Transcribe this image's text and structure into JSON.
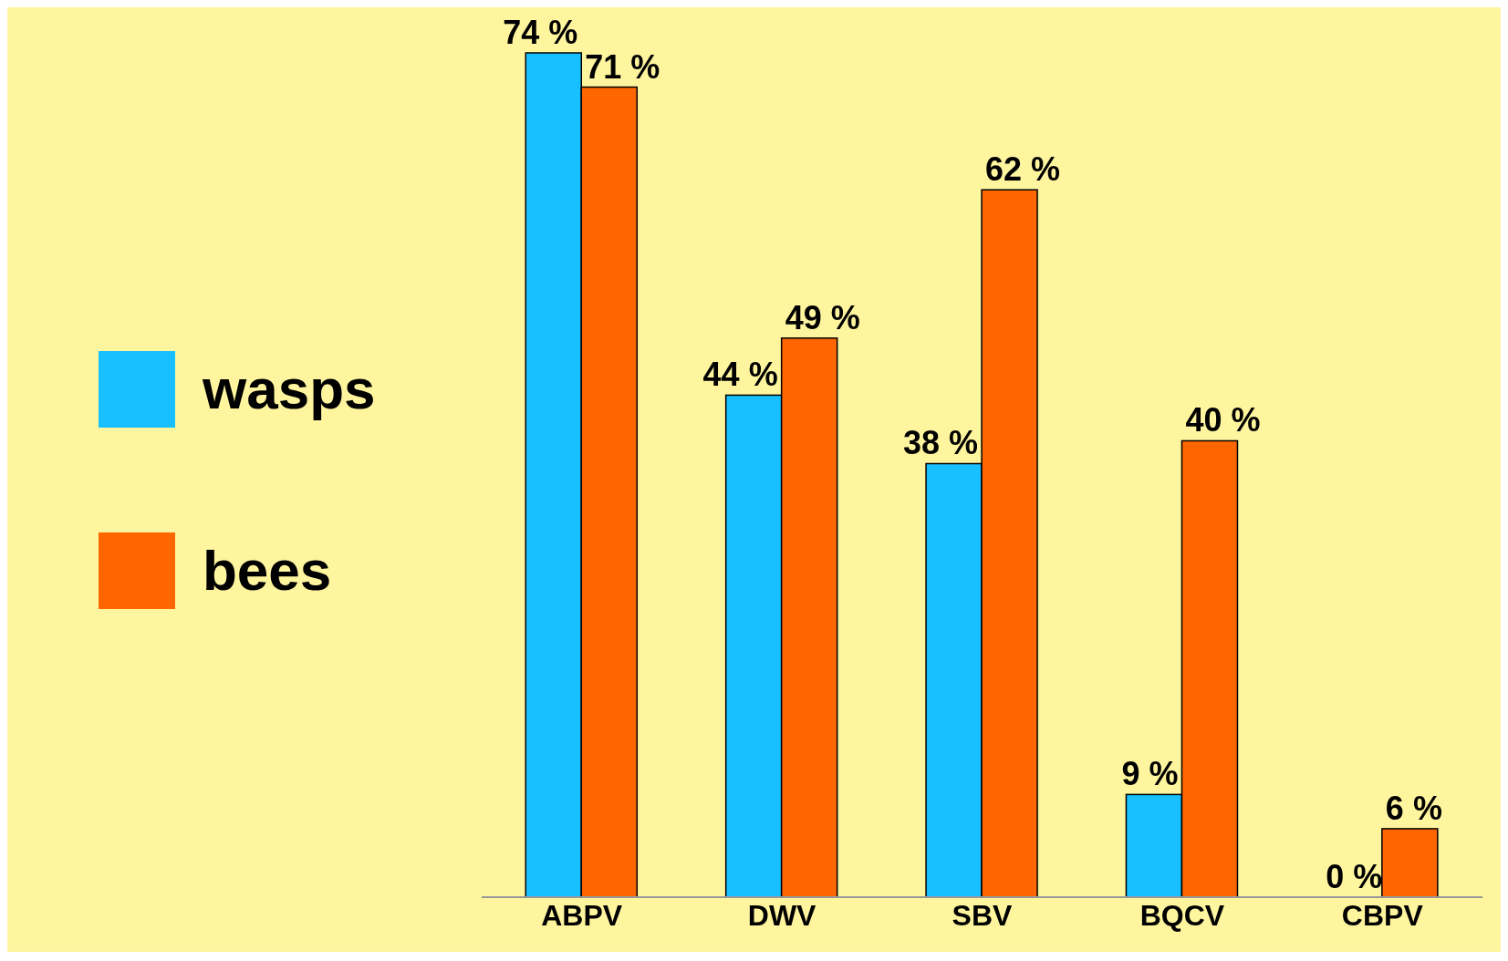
{
  "chart_data": {
    "type": "bar",
    "categories": [
      "ABPV",
      "DWV",
      "SBV",
      "BQCV",
      "CBPV"
    ],
    "series": [
      {
        "name": "wasps",
        "color": "#19c0ff",
        "values": [
          74,
          44,
          38,
          9,
          0
        ],
        "value_labels": [
          "74 %",
          "44 %",
          "38 %",
          "9 %",
          "0 %"
        ]
      },
      {
        "name": "bees",
        "color": "#ff6600",
        "values": [
          71,
          49,
          62,
          40,
          6
        ],
        "value_labels": [
          "71 %",
          "49 %",
          "62 %",
          "40 %",
          "6 %"
        ]
      }
    ],
    "legend": "left",
    "grid": false
  }
}
